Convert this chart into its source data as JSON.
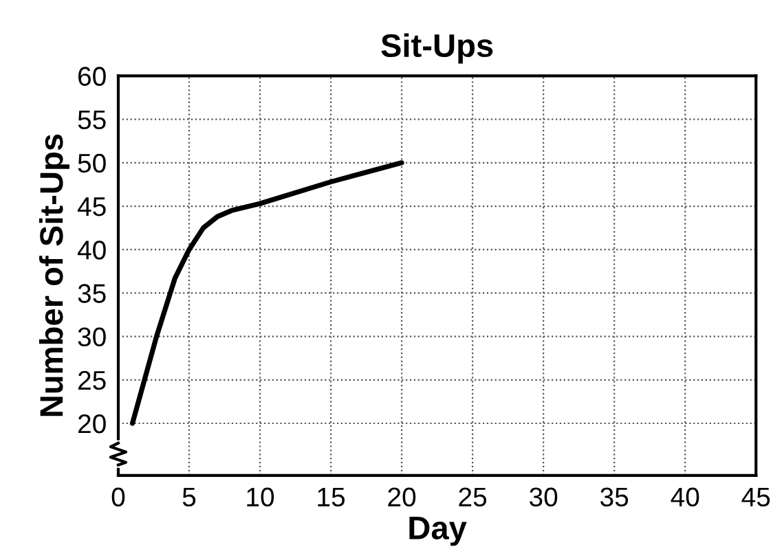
{
  "chart_data": {
    "type": "line",
    "title": "Sit-Ups",
    "xlabel": "Day",
    "ylabel": "Number of Sit-Ups",
    "x": [
      1,
      2.7,
      4,
      5,
      6,
      7,
      8,
      10,
      15,
      20
    ],
    "series": [
      {
        "color": "#000000",
        "values": [
          20,
          30,
          36.7,
          40,
          42.5,
          43.8,
          44.5,
          45.3,
          47.8,
          50
        ]
      }
    ],
    "xlim": [
      0,
      45
    ],
    "xticks": [
      0,
      5,
      10,
      15,
      20,
      25,
      30,
      35,
      40,
      45
    ],
    "ylim": [
      14,
      60
    ],
    "yticks": [
      20,
      25,
      30,
      35,
      40,
      45,
      50,
      55,
      60
    ],
    "grid": true,
    "line_style": "solid",
    "marker": "none"
  }
}
